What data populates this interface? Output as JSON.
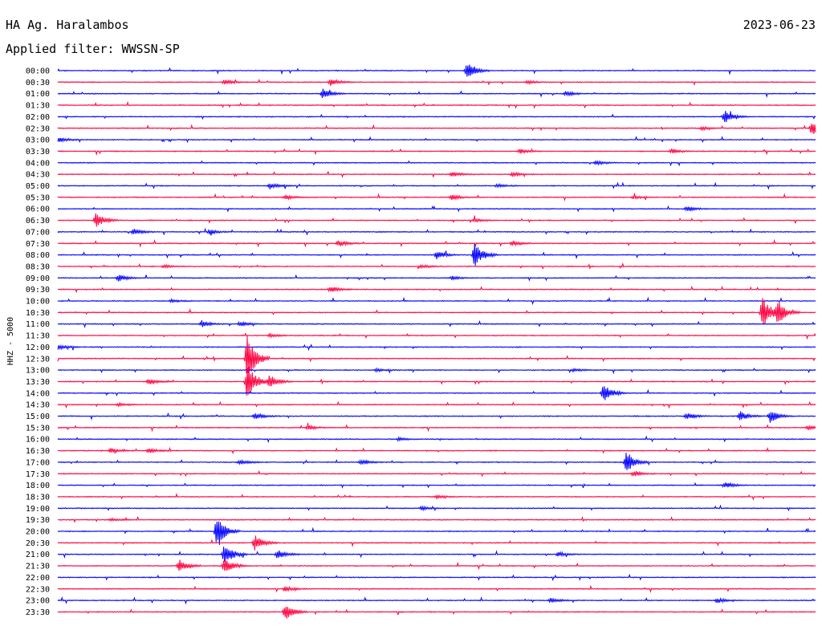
{
  "header": {
    "station": "HA Ag. Haralambos",
    "date": "2023-06-23",
    "filter": "Applied filter: WWSSN-SP"
  },
  "chart_data": {
    "type": "line",
    "ylabel": "HHZ - 5000",
    "colors": [
      "#0000ff",
      "#ff0040"
    ],
    "rows": [
      {
        "label": "00:00",
        "events": [
          [
            0.54,
            10
          ]
        ]
      },
      {
        "label": "00:30",
        "events": [
          [
            0.22,
            3
          ],
          [
            0.36,
            4
          ],
          [
            0.62,
            2
          ]
        ]
      },
      {
        "label": "01:00",
        "events": [
          [
            0.35,
            7
          ],
          [
            0.67,
            3
          ]
        ]
      },
      {
        "label": "01:30",
        "events": []
      },
      {
        "label": "02:00",
        "events": [
          [
            0.88,
            8
          ]
        ]
      },
      {
        "label": "02:30",
        "events": [
          [
            0.85,
            2
          ],
          [
            0.995,
            9
          ]
        ]
      },
      {
        "label": "03:00",
        "events": [
          [
            0.0,
            3
          ]
        ]
      },
      {
        "label": "03:30",
        "events": [
          [
            0.61,
            3
          ],
          [
            0.81,
            3
          ]
        ]
      },
      {
        "label": "04:00",
        "events": [
          [
            0.71,
            3
          ]
        ]
      },
      {
        "label": "04:30",
        "events": [
          [
            0.52,
            3
          ],
          [
            0.6,
            3
          ]
        ]
      },
      {
        "label": "05:00",
        "events": [
          [
            0.28,
            4
          ],
          [
            0.58,
            2
          ]
        ]
      },
      {
        "label": "05:30",
        "events": [
          [
            0.3,
            3
          ],
          [
            0.52,
            3
          ],
          [
            0.76,
            2
          ]
        ]
      },
      {
        "label": "06:00",
        "events": [
          [
            0.83,
            3
          ]
        ]
      },
      {
        "label": "06:30",
        "events": [
          [
            0.05,
            9
          ],
          [
            0.55,
            2
          ]
        ]
      },
      {
        "label": "07:00",
        "events": [
          [
            0.1,
            4
          ],
          [
            0.2,
            3
          ]
        ]
      },
      {
        "label": "07:30",
        "events": [
          [
            0.37,
            4
          ],
          [
            0.6,
            3
          ]
        ]
      },
      {
        "label": "08:00",
        "events": [
          [
            0.55,
            15
          ],
          [
            0.5,
            5
          ]
        ]
      },
      {
        "label": "08:30",
        "events": [
          [
            0.14,
            2
          ],
          [
            0.48,
            2
          ]
        ]
      },
      {
        "label": "09:00",
        "events": [
          [
            0.08,
            4
          ],
          [
            0.52,
            2
          ]
        ]
      },
      {
        "label": "09:30",
        "events": [
          [
            0.36,
            4
          ]
        ]
      },
      {
        "label": "10:00",
        "events": [
          [
            0.15,
            2
          ]
        ]
      },
      {
        "label": "10:30",
        "events": [
          [
            0.93,
            20
          ],
          [
            0.95,
            14
          ]
        ]
      },
      {
        "label": "11:00",
        "events": [
          [
            0.19,
            4
          ],
          [
            0.24,
            3
          ]
        ]
      },
      {
        "label": "11:30",
        "events": [
          [
            0.28,
            2
          ]
        ]
      },
      {
        "label": "12:00",
        "events": [
          [
            0.0,
            3
          ]
        ]
      },
      {
        "label": "12:30",
        "events": [
          [
            0.25,
            30
          ]
        ]
      },
      {
        "label": "13:00",
        "events": [
          [
            0.42,
            2
          ],
          [
            0.68,
            2
          ]
        ]
      },
      {
        "label": "13:30",
        "events": [
          [
            0.25,
            24
          ],
          [
            0.12,
            4
          ],
          [
            0.28,
            8
          ]
        ]
      },
      {
        "label": "14:00",
        "events": [
          [
            0.72,
            12
          ]
        ]
      },
      {
        "label": "14:30",
        "events": [
          [
            0.08,
            2
          ]
        ]
      },
      {
        "label": "15:00",
        "events": [
          [
            0.26,
            4
          ],
          [
            0.83,
            4
          ],
          [
            0.9,
            6
          ],
          [
            0.94,
            8
          ]
        ]
      },
      {
        "label": "15:30",
        "events": [
          [
            0.33,
            3
          ],
          [
            0.99,
            3
          ]
        ]
      },
      {
        "label": "16:00",
        "events": [
          [
            0.45,
            2
          ]
        ]
      },
      {
        "label": "16:30",
        "events": [
          [
            0.07,
            3
          ],
          [
            0.12,
            3
          ]
        ]
      },
      {
        "label": "17:00",
        "events": [
          [
            0.24,
            3
          ],
          [
            0.4,
            3
          ],
          [
            0.75,
            14
          ]
        ]
      },
      {
        "label": "17:30",
        "events": [
          [
            0.76,
            4
          ]
        ]
      },
      {
        "label": "18:00",
        "events": [
          [
            0.88,
            4
          ]
        ]
      },
      {
        "label": "18:30",
        "events": [
          [
            0.5,
            2
          ]
        ]
      },
      {
        "label": "19:00",
        "events": [
          [
            0.48,
            2
          ]
        ]
      },
      {
        "label": "19:30",
        "events": [
          [
            0.07,
            2
          ]
        ]
      },
      {
        "label": "20:00",
        "events": [
          [
            0.21,
            20
          ]
        ]
      },
      {
        "label": "20:30",
        "events": [
          [
            0.26,
            10
          ]
        ]
      },
      {
        "label": "21:00",
        "events": [
          [
            0.22,
            14
          ],
          [
            0.29,
            6
          ],
          [
            0.66,
            3
          ]
        ]
      },
      {
        "label": "21:30",
        "events": [
          [
            0.16,
            8
          ],
          [
            0.22,
            10
          ]
        ]
      },
      {
        "label": "22:00",
        "events": []
      },
      {
        "label": "22:30",
        "events": [
          [
            0.3,
            3
          ]
        ]
      },
      {
        "label": "23:00",
        "events": [
          [
            0.65,
            3
          ],
          [
            0.87,
            3
          ]
        ]
      },
      {
        "label": "23:30",
        "events": [
          [
            0.3,
            10
          ]
        ]
      }
    ]
  }
}
